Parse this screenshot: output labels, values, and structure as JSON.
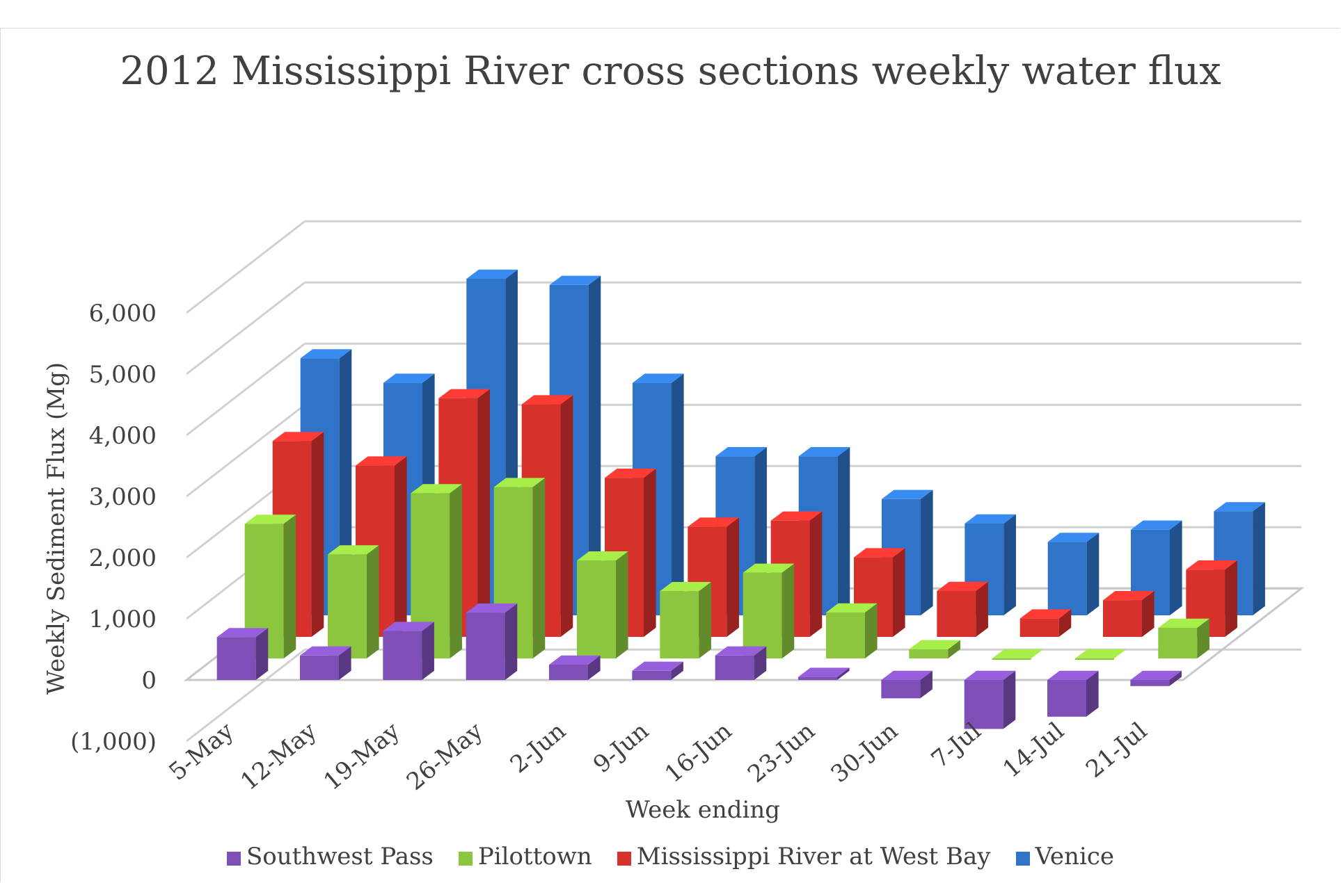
{
  "chart_data": {
    "type": "bar",
    "title": "2012 Mississippi River cross sections weekly water flux",
    "xlabel": "Week ending",
    "ylabel": "Weekly Sediment Flux (Mg)",
    "ylim": [
      -1000,
      6000
    ],
    "yticks": [
      -1000,
      0,
      1000,
      2000,
      3000,
      4000,
      5000,
      6000
    ],
    "ytick_labels": [
      "(1,000)",
      "0",
      "1,000",
      "2,000",
      "3,000",
      "4,000",
      "5,000",
      "6,000"
    ],
    "categories": [
      "5-May",
      "12-May",
      "19-May",
      "26-May",
      "2-Jun",
      "9-Jun",
      "16-Jun",
      "23-Jun",
      "30-Jun",
      "7-Jul",
      "14-Jul",
      "21-Jul"
    ],
    "series": [
      {
        "name": "Southwest Pass",
        "color": "#7f4fb8",
        "values": [
          700,
          400,
          800,
          1100,
          250,
          150,
          400,
          50,
          -300,
          -800,
          -600,
          -100
        ]
      },
      {
        "name": "Pilottown",
        "color": "#8cc63e",
        "values": [
          2200,
          1700,
          2700,
          2800,
          1600,
          1100,
          1400,
          750,
          150,
          0,
          0,
          500
        ]
      },
      {
        "name": "Mississippi River at West Bay",
        "color": "#d7312c",
        "values": [
          3200,
          2800,
          3900,
          3800,
          2600,
          1800,
          1900,
          1300,
          750,
          300,
          600,
          1100
        ]
      },
      {
        "name": "Venice",
        "color": "#2f74c8",
        "values": [
          4200,
          3800,
          5500,
          5400,
          3800,
          2600,
          2600,
          1900,
          1500,
          1200,
          1400,
          1700
        ]
      }
    ],
    "legend_position": "bottom",
    "grid": true,
    "view": "3d-clustered-depth"
  }
}
